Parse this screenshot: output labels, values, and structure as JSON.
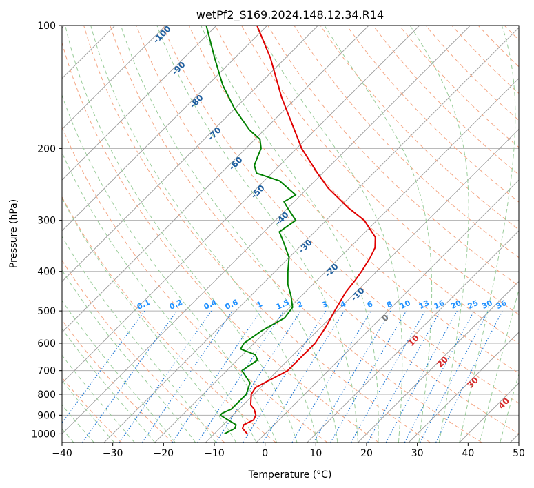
{
  "chart_data": {
    "type": "line",
    "subtype": "skew-t log-p diagram",
    "title": "wetPf2_S169.2024.148.12.34.R14",
    "xlabel": "Temperature (°C)",
    "ylabel": "Pressure (hPa)",
    "xlim": [
      -40,
      50
    ],
    "ylim": [
      1050,
      100
    ],
    "y_scale": "log",
    "grid": true,
    "x_ticks": [
      "−40",
      "−30",
      "−20",
      "−10",
      "0",
      "10",
      "20",
      "30",
      "40",
      "50"
    ],
    "y_ticks": [
      "100",
      "200",
      "300",
      "400",
      "500",
      "600",
      "700",
      "800",
      "900",
      "1000"
    ],
    "series": [
      {
        "color": "#e00000",
        "comment_role": "temperature",
        "points": [
          [
            1000,
            -3.5
          ],
          [
            970,
            -5.5
          ],
          [
            950,
            -6.0
          ],
          [
            925,
            -5.0
          ],
          [
            900,
            -5.5
          ],
          [
            870,
            -7.0
          ],
          [
            850,
            -8.5
          ],
          [
            800,
            -10.5
          ],
          [
            770,
            -11.0
          ],
          [
            700,
            -8.0
          ],
          [
            650,
            -8.0
          ],
          [
            600,
            -8.0
          ],
          [
            550,
            -9.0
          ],
          [
            500,
            -10.5
          ],
          [
            450,
            -12.0
          ],
          [
            420,
            -12.5
          ],
          [
            400,
            -13.0
          ],
          [
            370,
            -14.0
          ],
          [
            350,
            -15.0
          ],
          [
            330,
            -17.0
          ],
          [
            300,
            -22.5
          ],
          [
            280,
            -28.0
          ],
          [
            250,
            -36.0
          ],
          [
            230,
            -41.0
          ],
          [
            200,
            -49.0
          ],
          [
            150,
            -63.0
          ],
          [
            120,
            -73.0
          ],
          [
            100,
            -82.0
          ]
        ]
      },
      {
        "color": "#008000",
        "comment_role": "dewpoint",
        "points": [
          [
            1000,
            -8.0
          ],
          [
            970,
            -7.0
          ],
          [
            950,
            -7.5
          ],
          [
            925,
            -10.0
          ],
          [
            900,
            -12.5
          ],
          [
            890,
            -12.5
          ],
          [
            870,
            -11.5
          ],
          [
            850,
            -11.5
          ],
          [
            800,
            -11.5
          ],
          [
            750,
            -13.0
          ],
          [
            700,
            -17.0
          ],
          [
            660,
            -16.0
          ],
          [
            640,
            -17.5
          ],
          [
            620,
            -21.5
          ],
          [
            600,
            -22.0
          ],
          [
            560,
            -21.0
          ],
          [
            520,
            -19.0
          ],
          [
            490,
            -19.5
          ],
          [
            460,
            -22.0
          ],
          [
            430,
            -25.0
          ],
          [
            400,
            -27.5
          ],
          [
            370,
            -30.0
          ],
          [
            340,
            -34.0
          ],
          [
            320,
            -37.0
          ],
          [
            300,
            -36.0
          ],
          [
            280,
            -40.0
          ],
          [
            270,
            -42.0
          ],
          [
            260,
            -41.0
          ],
          [
            240,
            -47.0
          ],
          [
            230,
            -53.0
          ],
          [
            220,
            -55.0
          ],
          [
            210,
            -56.0
          ],
          [
            200,
            -57.0
          ],
          [
            190,
            -59.0
          ],
          [
            180,
            -63.0
          ],
          [
            160,
            -70.0
          ],
          [
            140,
            -77.0
          ],
          [
            120,
            -84.0
          ],
          [
            100,
            -92.0
          ]
        ]
      }
    ],
    "dry_adiabat_labels": [
      "-100",
      "-90",
      "-80",
      "-70",
      "-60",
      "-50",
      "-40",
      "-30",
      "-20",
      "-10",
      "0",
      "10",
      "20",
      "30",
      "40"
    ],
    "mixing_ratio_labels": [
      "0.1",
      "0.2",
      "0.4",
      "0.6",
      "1",
      "1.5",
      "2",
      "3",
      "4",
      "6",
      "8",
      "10",
      "13",
      "16",
      "20",
      "25",
      "30",
      "36"
    ],
    "colors": {
      "isotherm": "#9a9a9a",
      "isobar": "#b0b0b0",
      "dry_adiabat": "#f4a582",
      "moist_adiabat": "#99cc99",
      "mixing_ratio": "#1f77d4",
      "label_blue": "#1f5f9f",
      "label_red": "#d62728",
      "label_gray": "#777777",
      "mixing_label": "#1f90ff",
      "left_curve": "#d9b99b"
    }
  }
}
